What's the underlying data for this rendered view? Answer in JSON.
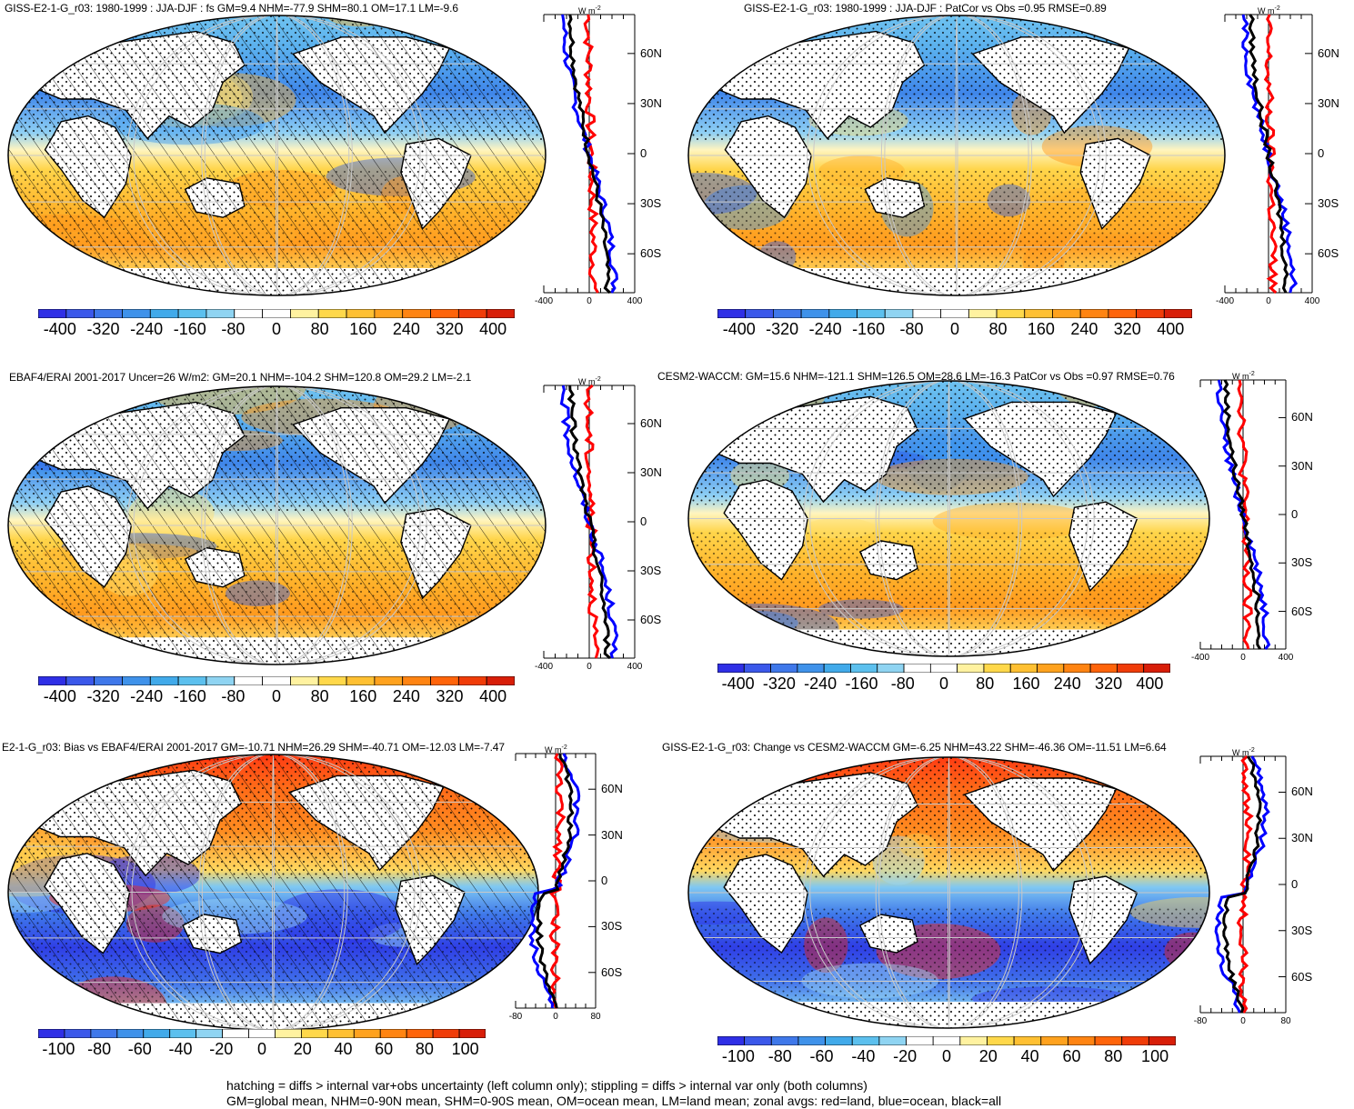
{
  "panels": [
    {
      "id": "p1",
      "title": "GISS-E2-1-G_r03: 1980-1999 : JJA-DJF : fs GM=9.4 NHM=-77.9 SHM=80.1 OM=17.1 LM=-9.6",
      "hatched": true,
      "kind": "abs",
      "prof_ticks": [
        "-400",
        "0",
        "400"
      ],
      "colorbar_labels": [
        "-400",
        "-320",
        "-240",
        "-160",
        "-80",
        "0",
        "80",
        "160",
        "240",
        "320",
        "400"
      ]
    },
    {
      "id": "p2",
      "title": "GISS-E2-1-G_r03: 1980-1999 : JJA-DJF : PatCor vs Obs =0.95 RMSE=0.89",
      "hatched": false,
      "kind": "abs",
      "prof_ticks": [
        "-400",
        "0",
        "400"
      ],
      "colorbar_labels": [
        "-400",
        "-320",
        "-240",
        "-160",
        "-80",
        "0",
        "80",
        "160",
        "240",
        "320",
        "400"
      ]
    },
    {
      "id": "p3",
      "title": "EBAF4/ERAI 2001-2017 Uncer=26 W/m2: GM=20.1 NHM=-104.2 SHM=120.8 OM=29.2 LM=-2.1",
      "hatched": true,
      "kind": "abs",
      "prof_ticks": [
        "-400",
        "0",
        "400"
      ],
      "colorbar_labels": [
        "-400",
        "-320",
        "-240",
        "-160",
        "-80",
        "0",
        "80",
        "160",
        "240",
        "320",
        "400"
      ]
    },
    {
      "id": "p4",
      "title": "CESM2-WACCM: GM=15.6 NHM=-121.1 SHM=126.5 OM=28.6 LM=-16.3 PatCor vs Obs =0.97 RMSE=0.76",
      "hatched": false,
      "kind": "abs",
      "prof_ticks": [
        "-400",
        "0",
        "400"
      ],
      "colorbar_labels": [
        "-400",
        "-320",
        "-240",
        "-160",
        "-80",
        "0",
        "80",
        "160",
        "240",
        "320",
        "400"
      ]
    },
    {
      "id": "p5",
      "title": "E2-1-G_r03: Bias vs EBAF4/ERAI 2001-2017 GM=-10.71 NHM=26.29 SHM=-40.71 OM=-12.03 LM=-7.47",
      "hatched": true,
      "kind": "diff",
      "prof_ticks": [
        "-80",
        "0",
        "80"
      ],
      "colorbar_labels": [
        "-100",
        "-80",
        "-60",
        "-40",
        "-20",
        "0",
        "20",
        "40",
        "60",
        "80",
        "100"
      ]
    },
    {
      "id": "p6",
      "title": "GISS-E2-1-G_r03: Change vs CESM2-WACCM GM=-6.25 NHM=43.22 SHM=-46.36 OM=-11.51 LM=6.64",
      "hatched": false,
      "kind": "diff",
      "prof_ticks": [
        "-80",
        "0",
        "80"
      ],
      "colorbar_labels": [
        "-100",
        "-80",
        "-60",
        "-40",
        "-20",
        "0",
        "20",
        "40",
        "60",
        "80",
        "100"
      ]
    }
  ],
  "lat_labels": [
    "60N",
    "30N",
    "0",
    "30S",
    "60S"
  ],
  "units_label": "W m",
  "units_exp": "-2",
  "footer": {
    "line1": "hatching = diffs > internal var+obs uncertainty (left column only); stippling = diffs > internal var only (both columns)",
    "line2": "GM=global mean, NHM=0-90N mean, SHM=0-90S mean, OM=ocean mean, LM=land mean; zonal avgs: red=land, blue=ocean, black=all"
  },
  "colors": {
    "colorbar": [
      "#2f2fe6",
      "#3b58ea",
      "#3f78ea",
      "#3f92ea",
      "#41aaea",
      "#5cc0ee",
      "#8fd4f2",
      "#ffffff",
      "#ffffff",
      "#fff2a0",
      "#ffd84a",
      "#ffc032",
      "#ffa21e",
      "#ff8412",
      "#ff640a",
      "#f03c08",
      "#d81e08"
    ],
    "land_zonal": "#ff0000",
    "ocean_zonal": "#0000ff",
    "all_zonal": "#000000"
  }
}
